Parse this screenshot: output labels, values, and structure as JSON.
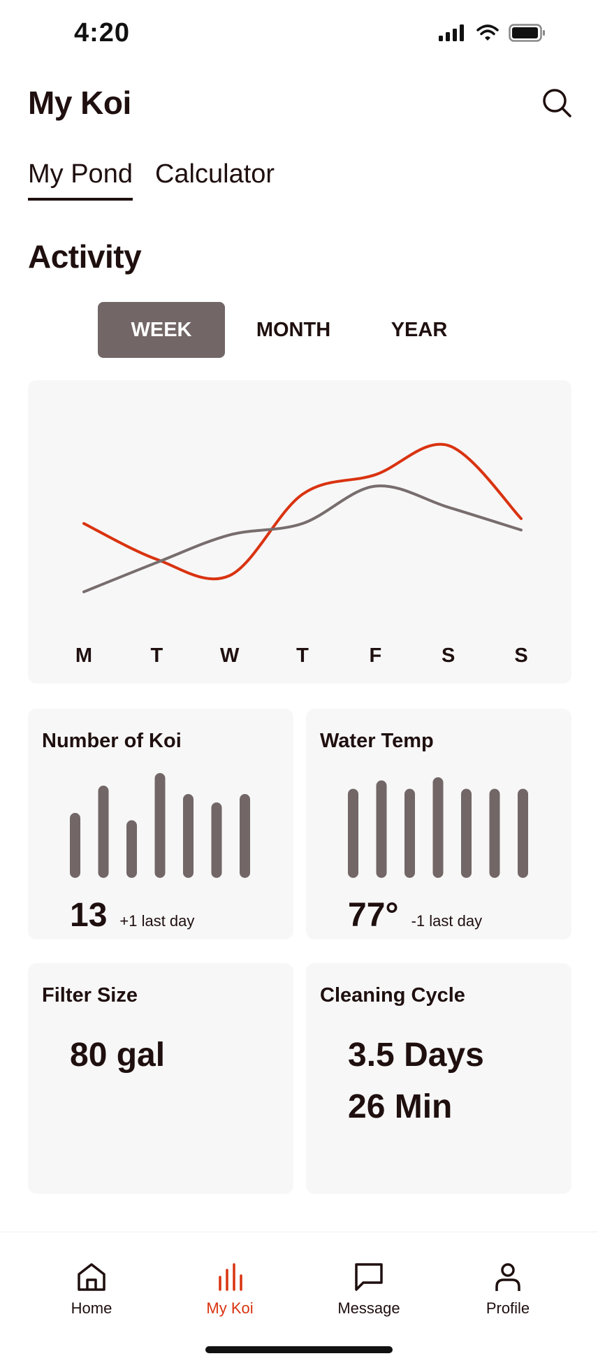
{
  "status_bar": {
    "time": "4:20"
  },
  "header": {
    "title": "My Koi",
    "search_icon": "search-icon"
  },
  "tabs": [
    {
      "label": "My Pond",
      "active": true
    },
    {
      "label": "Calculator",
      "active": false
    }
  ],
  "activity": {
    "title": "Activity",
    "ranges": [
      {
        "label": "WEEK",
        "active": true
      },
      {
        "label": "MONTH",
        "active": false
      },
      {
        "label": "YEAR",
        "active": false
      }
    ]
  },
  "chart_data": {
    "type": "line",
    "categories": [
      "M",
      "T",
      "W",
      "T",
      "F",
      "S",
      "S"
    ],
    "series": [
      {
        "color": "#d93310",
        "values": [
          52,
          30,
          20,
          70,
          82,
          100,
          55
        ]
      },
      {
        "color": "#786d6d",
        "values": [
          10,
          28,
          45,
          52,
          75,
          62,
          48
        ]
      }
    ],
    "ylim": [
      0,
      110
    ],
    "grid": false,
    "legend": "none"
  },
  "stats": {
    "koi": {
      "title": "Number of Koi",
      "value": "13",
      "delta": "+1 last day",
      "bars": [
        0.62,
        0.88,
        0.55,
        1.0,
        0.8,
        0.72,
        0.8
      ]
    },
    "temp": {
      "title": "Water Temp",
      "value": "77°",
      "delta": "-1 last day",
      "bars": [
        0.85,
        0.93,
        0.85,
        0.96,
        0.85,
        0.85,
        0.85
      ]
    },
    "filter": {
      "title": "Filter Size",
      "value": "80 gal"
    },
    "cleaning": {
      "title": "Cleaning Cycle",
      "value_1": "3.5 Days",
      "value_2": "26 Min"
    }
  },
  "colors": {
    "accent": "#d93310",
    "bar": "#726666",
    "card": "#f7f7f7",
    "text": "#1f0f0f"
  },
  "nav": [
    {
      "label": "Home",
      "icon": "home-icon",
      "active": false
    },
    {
      "label": "My Koi",
      "icon": "bar-chart-icon",
      "active": true
    },
    {
      "label": "Message",
      "icon": "message-icon",
      "active": false
    },
    {
      "label": "Profile",
      "icon": "profile-icon",
      "active": false
    }
  ]
}
